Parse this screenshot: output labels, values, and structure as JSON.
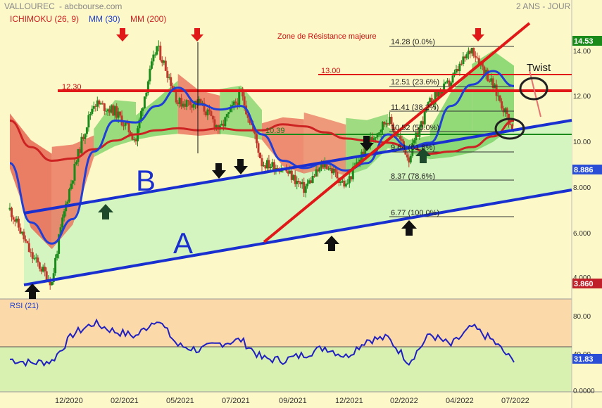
{
  "header": {
    "ticker": "VALLOUREC",
    "source": "- abcbourse.com",
    "period": "2 ANS - JOUR",
    "ind_ichimoku": "ICHIMOKU (26, 9)",
    "ind_mm30": "MM (30)",
    "ind_mm200": "MM (200)"
  },
  "colors": {
    "background": "#fdf8c8",
    "price_up": "#1a8a1a",
    "price_down": "#c0392b",
    "mm30": "#1f3fd6",
    "mm200": "#cc2222",
    "cloud_bull": "#7fd36a",
    "cloud_bear": "#e8705a",
    "channel": "#1a2fd0",
    "fill_lightgreen": "#d4f5c0",
    "resistance": "#e01818",
    "fib": "#333333",
    "support_green": "#1a8a1a",
    "last_price_bg": "#1a8a1a",
    "current_bg": "#2a4fd6",
    "low_bg": "#c0202a",
    "rsi_top_bg": "#fbd9a8",
    "rsi_bottom_bg": "#d8f0b0",
    "rsi_line": "#2020c0"
  },
  "chart_data": [
    {
      "type": "line",
      "title": "VALLOUREC",
      "y_scale": "log",
      "ylim": [
        3.6,
        15.0
      ],
      "y_ticks": [
        "4.000",
        "6.000",
        "8.000",
        "10.00",
        "12.00",
        "14.00"
      ],
      "x_ticks": [
        "12/2020",
        "02/2021",
        "05/2021",
        "07/2021",
        "09/2021",
        "12/2021",
        "02/2022",
        "04/2022",
        "07/2022"
      ],
      "price_labels": {
        "last": "14.53",
        "current": "8.886",
        "low": "3.860"
      },
      "series": [
        {
          "name": "Cours",
          "x": [
            "2020-07",
            "2020-08",
            "2020-09",
            "2020-10",
            "2020-11",
            "2020-12",
            "2021-01",
            "2021-02",
            "2021-03",
            "2021-04",
            "2021-05",
            "2021-06",
            "2021-07",
            "2021-08",
            "2021-09",
            "2021-10",
            "2021-11",
            "2021-12",
            "2022-01",
            "2022-02",
            "2022-03",
            "2022-04",
            "2022-05",
            "2022-06",
            "2022-07"
          ],
          "y": [
            5.8,
            4.5,
            3.86,
            7.0,
            10.5,
            10.0,
            8.5,
            14.3,
            10.5,
            10.5,
            9.0,
            11.0,
            7.5,
            7.3,
            6.5,
            7.5,
            6.6,
            8.3,
            9.6,
            7.7,
            10.5,
            11.8,
            14.2,
            11.5,
            8.886
          ]
        },
        {
          "name": "MM (30)",
          "x": [
            "2020-07",
            "2020-08",
            "2020-09",
            "2020-10",
            "2020-11",
            "2020-12",
            "2021-01",
            "2021-02",
            "2021-03",
            "2021-04",
            "2021-05",
            "2021-06",
            "2021-07",
            "2021-08",
            "2021-09",
            "2021-10",
            "2021-11",
            "2021-12",
            "2022-01",
            "2022-02",
            "2022-03",
            "2022-04",
            "2022-05",
            "2022-06",
            "2022-07"
          ],
          "y": [
            7.5,
            5.4,
            4.8,
            5.5,
            8.0,
            9.5,
            9.4,
            10.3,
            11.4,
            10.4,
            10.1,
            10.3,
            8.8,
            7.6,
            7.3,
            7.5,
            7.2,
            7.5,
            8.8,
            8.2,
            8.4,
            10.3,
            11.6,
            12.5,
            11.5
          ]
        },
        {
          "name": "MM (200)",
          "x": [
            "2020-07",
            "2020-08",
            "2020-09",
            "2020-10",
            "2020-11",
            "2020-12",
            "2021-01",
            "2021-02",
            "2021-03",
            "2021-04",
            "2021-05",
            "2021-06",
            "2021-07",
            "2021-08",
            "2021-09",
            "2021-10",
            "2021-11",
            "2021-12",
            "2022-01",
            "2022-02",
            "2022-03",
            "2022-04",
            "2022-05",
            "2022-06",
            "2022-07"
          ],
          "y": [
            9.5,
            8.2,
            7.6,
            7.7,
            8.1,
            8.5,
            8.8,
            9.0,
            9.1,
            9.0,
            9.1,
            9.0,
            9.0,
            9.3,
            9.2,
            8.9,
            8.6,
            8.5,
            8.4,
            8.2,
            7.9,
            8.0,
            8.2,
            8.7,
            9.5
          ]
        }
      ],
      "fibonacci": [
        {
          "label": "14.28  (0.0%)",
          "value": 14.28
        },
        {
          "label": "12.51  (23.6%)",
          "value": 12.51
        },
        {
          "label": "11.41  (38.2%)",
          "value": 11.41
        },
        {
          "label": "10.52  (50.0%)",
          "value": 10.52
        },
        {
          "label": "9.64  (61.8%)",
          "value": 9.64
        },
        {
          "label": "8.37  (78.6%)",
          "value": 8.37
        },
        {
          "label": "6.77  (100.0%)",
          "value": 6.77
        }
      ],
      "levels": [
        {
          "label": "12.30",
          "value": 12.3
        },
        {
          "label": "13.00",
          "value": 13.0
        },
        {
          "label": "10.39",
          "value": 10.39
        }
      ],
      "annotations": [
        "Zone de Résistance majeure",
        "Twist",
        "A",
        "B"
      ]
    },
    {
      "type": "line",
      "title": "RSI (21)",
      "ylim": [
        0,
        100
      ],
      "y_ticks": [
        "0.0000",
        "40.00",
        "80.00"
      ],
      "current_label": "31.83",
      "series": [
        {
          "name": "RSI (21)",
          "x": [
            "2020-07",
            "2020-08",
            "2020-09",
            "2020-10",
            "2020-11",
            "2020-12",
            "2021-01",
            "2021-02",
            "2021-03",
            "2021-04",
            "2021-05",
            "2021-06",
            "2021-07",
            "2021-08",
            "2021-09",
            "2021-10",
            "2021-11",
            "2021-12",
            "2022-01",
            "2022-02",
            "2022-03",
            "2022-04",
            "2022-05",
            "2022-06",
            "2022-07"
          ],
          "y": [
            35,
            31,
            33,
            62,
            74,
            65,
            60,
            79,
            50,
            45,
            52,
            56,
            36,
            34,
            40,
            48,
            38,
            56,
            58,
            32,
            62,
            50,
            70,
            55,
            31.83
          ]
        }
      ]
    }
  ]
}
